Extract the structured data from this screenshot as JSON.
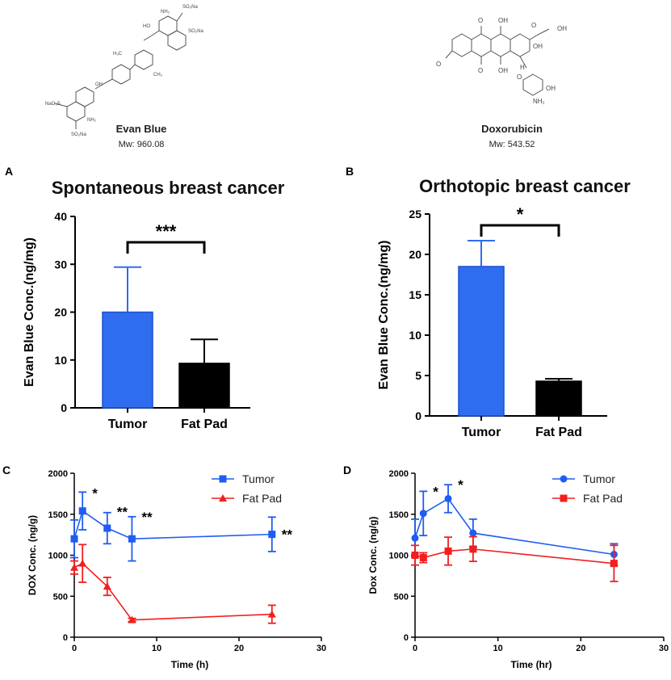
{
  "structures": [
    {
      "name": "Evan Blue",
      "mw": "Mw: 960.08"
    },
    {
      "name": "Doxorubicin",
      "mw": "Mw: 543.52"
    }
  ],
  "chart_data": [
    {
      "type": "bar",
      "panel": "A",
      "title": "Spontaneous breast cancer",
      "ylabel": "Evan Blue Conc.(ng/mg)",
      "xlabel": "",
      "categories": [
        "Tumor",
        "Fat Pad"
      ],
      "values": [
        20,
        9.3
      ],
      "errors": [
        9.4,
        5.0
      ],
      "colors": [
        "#2f6df0",
        "#000000"
      ],
      "ylim": [
        0,
        40
      ],
      "yticks": [
        0,
        10,
        20,
        30,
        40
      ],
      "significance": "***"
    },
    {
      "type": "bar",
      "panel": "B",
      "title": "Orthotopic breast cancer",
      "ylabel": "Evan Blue Conc.(ng/mg)",
      "xlabel": "",
      "categories": [
        "Tumor",
        "Fat Pad"
      ],
      "values": [
        18.5,
        4.3
      ],
      "errors": [
        3.2,
        0.3
      ],
      "colors": [
        "#2f6df0",
        "#000000"
      ],
      "ylim": [
        0,
        25
      ],
      "yticks": [
        0,
        5,
        10,
        15,
        20,
        25
      ],
      "significance": "*"
    },
    {
      "type": "line",
      "panel": "C",
      "title": "",
      "ylabel": "DOX Conc. (ng/g)",
      "xlabel": "Time (h)",
      "xlim": [
        0,
        30
      ],
      "ylim": [
        0,
        2000
      ],
      "xticks": [
        0,
        10,
        20,
        30
      ],
      "yticks": [
        0,
        500,
        1000,
        1500,
        2000
      ],
      "x": [
        0,
        1,
        4,
        7,
        24
      ],
      "legend": "top-right",
      "series": [
        {
          "name": "Tumor",
          "color": "#1f5cf2",
          "marker": "square",
          "values": [
            1200,
            1540,
            1330,
            1200,
            1255
          ],
          "errors": [
            230,
            230,
            190,
            270,
            210
          ]
        },
        {
          "name": "Fat Pad",
          "color": "#f21f1f",
          "marker": "triangle",
          "values": [
            850,
            900,
            620,
            210,
            280
          ],
          "errors": [
            80,
            230,
            110,
            20,
            110
          ]
        }
      ],
      "annotations": [
        {
          "x": 1,
          "y": 1760,
          "text": "*"
        },
        {
          "x": 4,
          "y": 1530,
          "text": "**"
        },
        {
          "x": 7,
          "y": 1470,
          "text": "**"
        },
        {
          "x": 24,
          "y": 1255,
          "text": "**"
        }
      ]
    },
    {
      "type": "line",
      "panel": "D",
      "title": "",
      "ylabel": "Dox Conc. (ng/g)",
      "xlabel": "Time (hr)",
      "xlim": [
        0,
        30
      ],
      "ylim": [
        0,
        2000
      ],
      "xticks": [
        0,
        10,
        20,
        30
      ],
      "yticks": [
        0,
        500,
        1000,
        1500,
        2000
      ],
      "x": [
        0,
        1,
        4,
        7,
        24
      ],
      "legend": "top-right",
      "series": [
        {
          "name": "Tumor",
          "color": "#1f5cf2",
          "marker": "circle",
          "values": [
            1210,
            1510,
            1690,
            1270,
            1010
          ],
          "errors": [
            230,
            270,
            170,
            170,
            130
          ]
        },
        {
          "name": "Fat Pad",
          "color": "#f21f1f",
          "marker": "square",
          "values": [
            1000,
            970,
            1050,
            1075,
            900
          ],
          "errors": [
            120,
            60,
            170,
            150,
            220
          ]
        }
      ],
      "annotations": [
        {
          "x": 1,
          "y": 1780,
          "text": "*"
        },
        {
          "x": 4,
          "y": 1860,
          "text": "*"
        }
      ]
    }
  ]
}
